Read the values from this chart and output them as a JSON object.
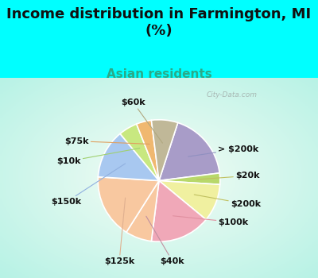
{
  "title": "Income distribution in Farmington, MI\n(%)",
  "subtitle": "Asian residents",
  "bg_cyan": "#00FFFF",
  "labels": [
    "> $200k",
    "$20k",
    "$200k",
    "$100k",
    "$40k",
    "$125k",
    "$150k",
    "$10k",
    "$75k",
    "$60k"
  ],
  "values": [
    18,
    3,
    10,
    16,
    7,
    17,
    13,
    5,
    4,
    7
  ],
  "colors": [
    "#a89cc8",
    "#b8d86a",
    "#f0f0a0",
    "#f0a8b8",
    "#f8c8a0",
    "#f8c8a0",
    "#a8c8f0",
    "#c8e880",
    "#f0b870",
    "#c0b898"
  ],
  "start_angle": 72,
  "label_fontsize": 8,
  "title_fontsize": 13,
  "subtitle_fontsize": 11,
  "subtitle_color": "#2aaa88",
  "watermark": "City-Data.com"
}
